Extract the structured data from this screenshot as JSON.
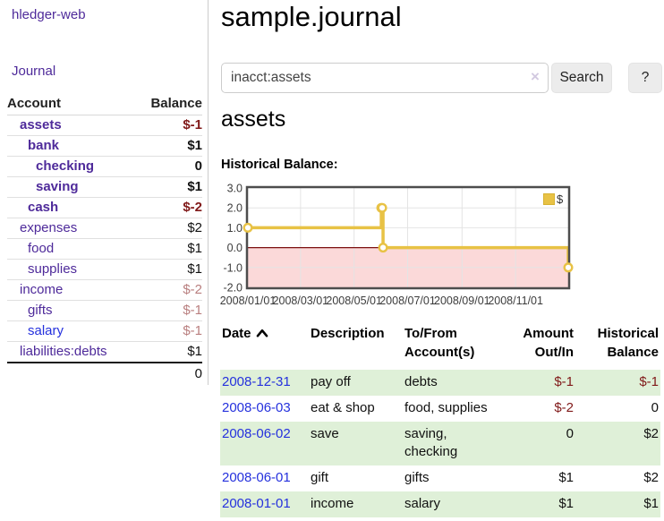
{
  "sidebar": {
    "brand": "hledger-web",
    "nav": [
      {
        "label": "Journal"
      }
    ],
    "table": {
      "col_account": "Account",
      "col_balance": "Balance",
      "accounts": [
        {
          "name": "assets",
          "depth": 1,
          "bold": true,
          "balance": "$-1",
          "balance_style": "neg-strong",
          "link_color": "purple"
        },
        {
          "name": "bank",
          "depth": 2,
          "bold": true,
          "balance": "$1",
          "balance_style": "pos",
          "link_color": "purple"
        },
        {
          "name": "checking",
          "depth": 3,
          "bold": true,
          "balance": "0",
          "balance_style": "pos",
          "link_color": "purple"
        },
        {
          "name": "saving",
          "depth": 3,
          "bold": true,
          "balance": "$1",
          "balance_style": "pos",
          "link_color": "purple"
        },
        {
          "name": "cash",
          "depth": 2,
          "bold": true,
          "balance": "$-2",
          "balance_style": "neg-strong",
          "link_color": "purple"
        },
        {
          "name": "expenses",
          "depth": 1,
          "bold": false,
          "balance": "$2",
          "balance_style": "pos",
          "link_color": "purple"
        },
        {
          "name": "food",
          "depth": 2,
          "bold": false,
          "balance": "$1",
          "balance_style": "pos",
          "link_color": "purple"
        },
        {
          "name": "supplies",
          "depth": 2,
          "bold": false,
          "balance": "$1",
          "balance_style": "pos",
          "link_color": "purple"
        },
        {
          "name": "income",
          "depth": 1,
          "bold": false,
          "balance": "$-2",
          "balance_style": "neg-soft",
          "link_color": "purple"
        },
        {
          "name": "gifts",
          "depth": 2,
          "bold": false,
          "balance": "$-1",
          "balance_style": "neg-soft",
          "link_color": "purple"
        },
        {
          "name": "salary",
          "depth": 2,
          "bold": false,
          "balance": "$-1",
          "balance_style": "neg-soft",
          "link_color": "blue"
        },
        {
          "name": "liabilities:debts",
          "depth": 1,
          "bold": false,
          "balance": "$1",
          "balance_style": "pos",
          "link_color": "purple"
        }
      ],
      "total": "0"
    }
  },
  "main": {
    "title": "sample.journal",
    "search": {
      "value": "inacct:assets",
      "clear_icon": "×",
      "button_label": "Search",
      "help_label": "?"
    },
    "account_heading": "assets",
    "chart_heading": "Historical Balance:"
  },
  "chart_data": {
    "type": "line",
    "step": true,
    "title": "Historical Balance",
    "series": [
      {
        "name": "$",
        "points": [
          {
            "date": "2008-01-01",
            "value": 1
          },
          {
            "date": "2008-06-01",
            "value": 2
          },
          {
            "date": "2008-06-02",
            "value": 2
          },
          {
            "date": "2008-06-03",
            "value": 0
          },
          {
            "date": "2008-12-31",
            "value": -1
          }
        ]
      }
    ],
    "xrange": [
      "2008-01-01",
      "2008-12-31"
    ],
    "ylim": [
      -2,
      3
    ],
    "yticks": [
      3,
      2,
      1,
      0,
      -1,
      -2
    ],
    "ytick_labels": [
      "3.0",
      "2.0",
      "1.0",
      "0.0",
      "-1.0",
      "-2.0"
    ],
    "xtick_dates": [
      "2008-01-01",
      "2008-03-01",
      "2008-05-01",
      "2008-07-01",
      "2008-09-01",
      "2008-11-01"
    ],
    "xtick_labels": [
      "2008/01/01",
      "2008/03/01",
      "2008/05/01",
      "2008/07/01",
      "2008/09/01",
      "2008/11/01"
    ],
    "legend": {
      "label": "$",
      "position": "top-right"
    },
    "grid": true,
    "colors": {
      "line": "#e8c245",
      "point_fill": "#ffffff",
      "negative_region": "#fbd9d9",
      "zero_line": "#7c1010",
      "gridline": "#e4e4e4",
      "border": "#4d4d4d",
      "tick_text": "#3c3c3c"
    }
  },
  "register": {
    "columns": [
      {
        "label": "Date",
        "sortable": true,
        "sort": "asc"
      },
      {
        "label": "Description"
      },
      {
        "label": "To/From\nAccount(s)"
      },
      {
        "label": "Amount\nOut/In",
        "align": "right"
      },
      {
        "label": "Historical\nBalance",
        "align": "right"
      }
    ],
    "rows": [
      {
        "date": "2008-12-31",
        "description": "pay off",
        "accounts": "debts",
        "amount": "$-1",
        "amount_neg": true,
        "balance": "$-1",
        "balance_neg": true,
        "highlight": true
      },
      {
        "date": "2008-06-03",
        "description": "eat & shop",
        "accounts": "food, supplies",
        "amount": "$-2",
        "amount_neg": true,
        "balance": "0",
        "balance_neg": false,
        "highlight": false
      },
      {
        "date": "2008-06-02",
        "description": "save",
        "accounts": "saving,\nchecking",
        "amount": "0",
        "amount_neg": false,
        "balance": "$2",
        "balance_neg": false,
        "highlight": true
      },
      {
        "date": "2008-06-01",
        "description": "gift",
        "accounts": "gifts",
        "amount": "$1",
        "amount_neg": false,
        "balance": "$2",
        "balance_neg": false,
        "highlight": false
      },
      {
        "date": "2008-01-01",
        "description": "income",
        "accounts": "salary",
        "amount": "$1",
        "amount_neg": false,
        "balance": "$1",
        "balance_neg": false,
        "highlight": true
      }
    ]
  }
}
